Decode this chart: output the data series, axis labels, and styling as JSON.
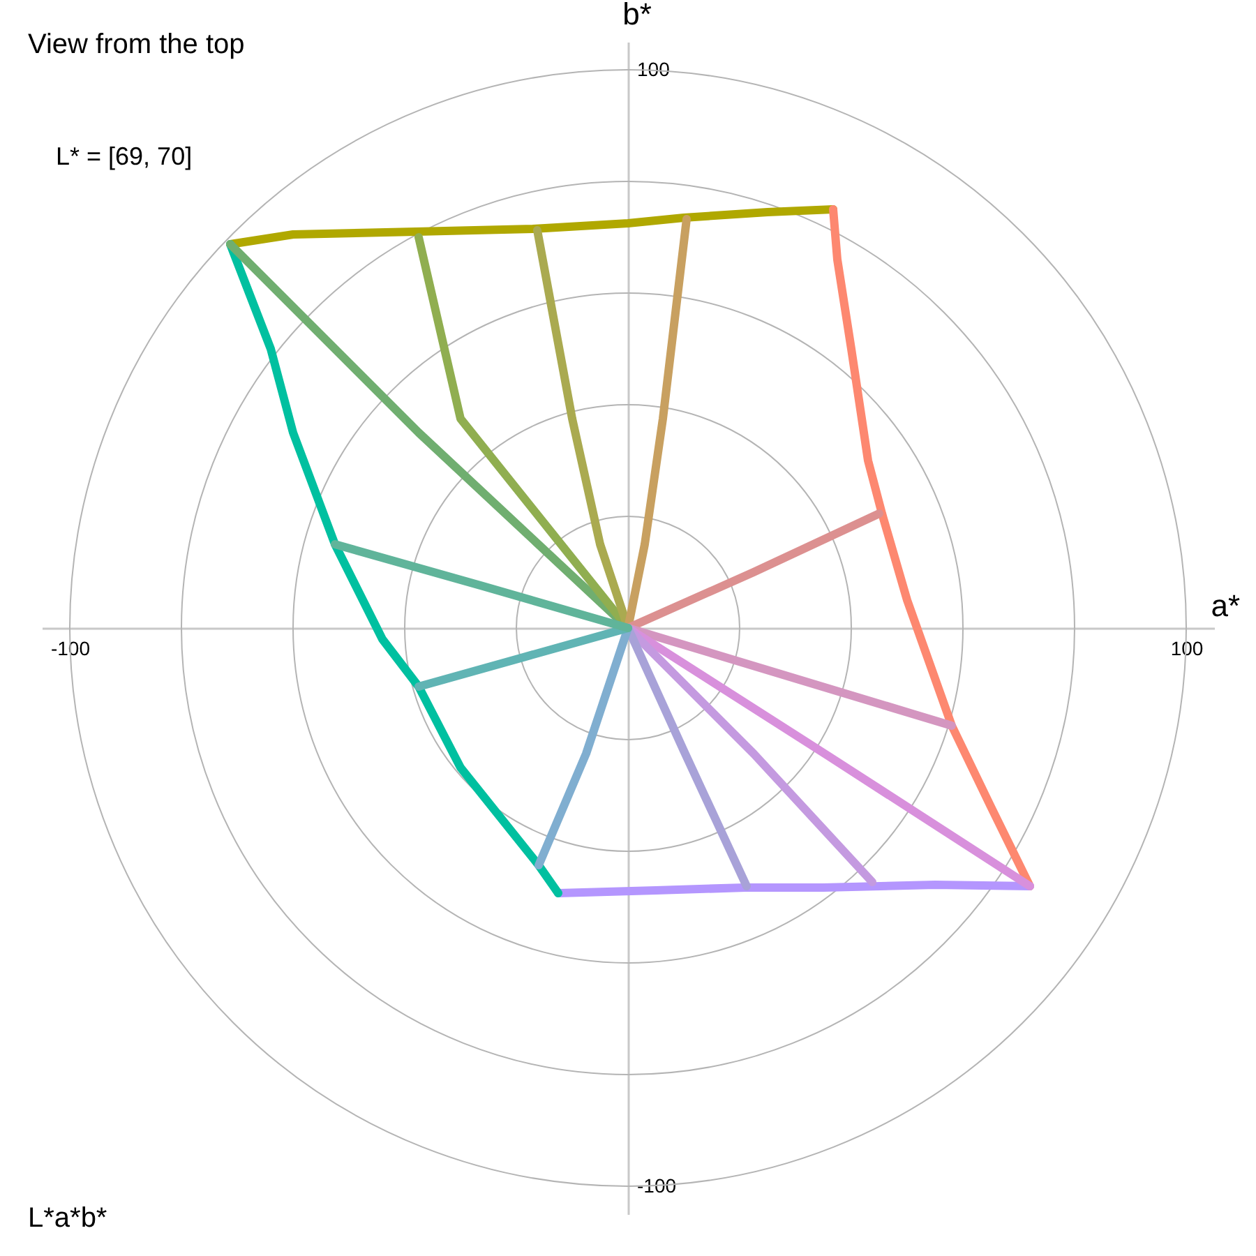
{
  "chart_data": {
    "type": "line",
    "title": "View from the top",
    "subtitle": "L* = [69, 70]",
    "xlabel": "a*",
    "ylabel": "b*",
    "annotations": [
      "L*a*b*"
    ],
    "xlim": [
      -105,
      105
    ],
    "ylim": [
      -105,
      105
    ],
    "xticks": [
      -100,
      100
    ],
    "yticks": [
      -100,
      100
    ],
    "marker": "none",
    "line_style": "solid",
    "series": [
      {
        "color": "#b0a800",
        "x": [
          -71.25,
          -60,
          -38,
          -17,
          0,
          10,
          25,
          36.75
        ],
        "values": [
          68.75,
          70.5,
          71,
          71.5,
          72.5,
          73.5,
          74.5,
          75
        ]
      },
      {
        "color": "#fd8870",
        "x": [
          36.75,
          37.5,
          40,
          43,
          45.5,
          50,
          58,
          65,
          72
        ],
        "values": [
          75,
          66,
          50,
          30,
          20.5,
          5,
          -17.5,
          -32,
          -46.25
        ]
      },
      {
        "color": "#b496fe",
        "x": [
          72,
          55,
          35,
          21,
          5,
          -12.5
        ],
        "values": [
          -46.25,
          -46,
          -46.5,
          -46.5,
          -47,
          -47.5
        ]
      },
      {
        "color": "#00c0a0",
        "x": [
          -12.5,
          -16,
          -30,
          -37.5,
          -44,
          -52.5,
          -60,
          -64,
          -71.25
        ],
        "values": [
          -47.5,
          -42.5,
          -25,
          -10.5,
          -2,
          15,
          35,
          50,
          68.75
        ]
      },
      {
        "color": "#70ae70",
        "x": [
          0,
          -37.5,
          -71.25
        ],
        "values": [
          0,
          35,
          68.75
        ]
      },
      {
        "color": "#90ae50",
        "x": [
          0,
          -12,
          -30,
          -37.5
        ],
        "values": [
          0,
          15,
          37.5,
          70
        ]
      },
      {
        "color": "#aaaa50",
        "x": [
          0,
          -5,
          -10,
          -16.25
        ],
        "values": [
          0,
          15,
          37.5,
          71.25
        ]
      },
      {
        "color": "#c8a060",
        "x": [
          0,
          3,
          6.25,
          10.5
        ],
        "values": [
          0,
          15,
          37.5,
          73.25
        ]
      },
      {
        "color": "#dc9090",
        "x": [
          0,
          22.5,
          45
        ],
        "values": [
          0,
          10,
          20.5
        ]
      },
      {
        "color": "#d496c0",
        "x": [
          0,
          29,
          58
        ],
        "values": [
          0,
          -8.75,
          -17.5
        ]
      },
      {
        "color": "#d890dc",
        "x": [
          0,
          36,
          72
        ],
        "values": [
          0,
          -23,
          -46.25
        ]
      },
      {
        "color": "#c49ae0",
        "x": [
          0,
          22.5,
          43.75
        ],
        "values": [
          0,
          -22.5,
          -45.5
        ]
      },
      {
        "color": "#a8a2d8",
        "x": [
          0,
          10,
          21.25
        ],
        "values": [
          0,
          -22,
          -46.25
        ]
      },
      {
        "color": "#80aed0",
        "x": [
          0,
          -7.5,
          -16
        ],
        "values": [
          0,
          -22.5,
          -42.5
        ]
      },
      {
        "color": "#60b4b4",
        "x": [
          0,
          -18.75,
          -37.5
        ],
        "values": [
          0,
          -5.25,
          -10.5
        ]
      },
      {
        "color": "#60b49a",
        "x": [
          0,
          -26,
          -52.5
        ],
        "values": [
          0,
          7.5,
          15
        ]
      }
    ]
  }
}
